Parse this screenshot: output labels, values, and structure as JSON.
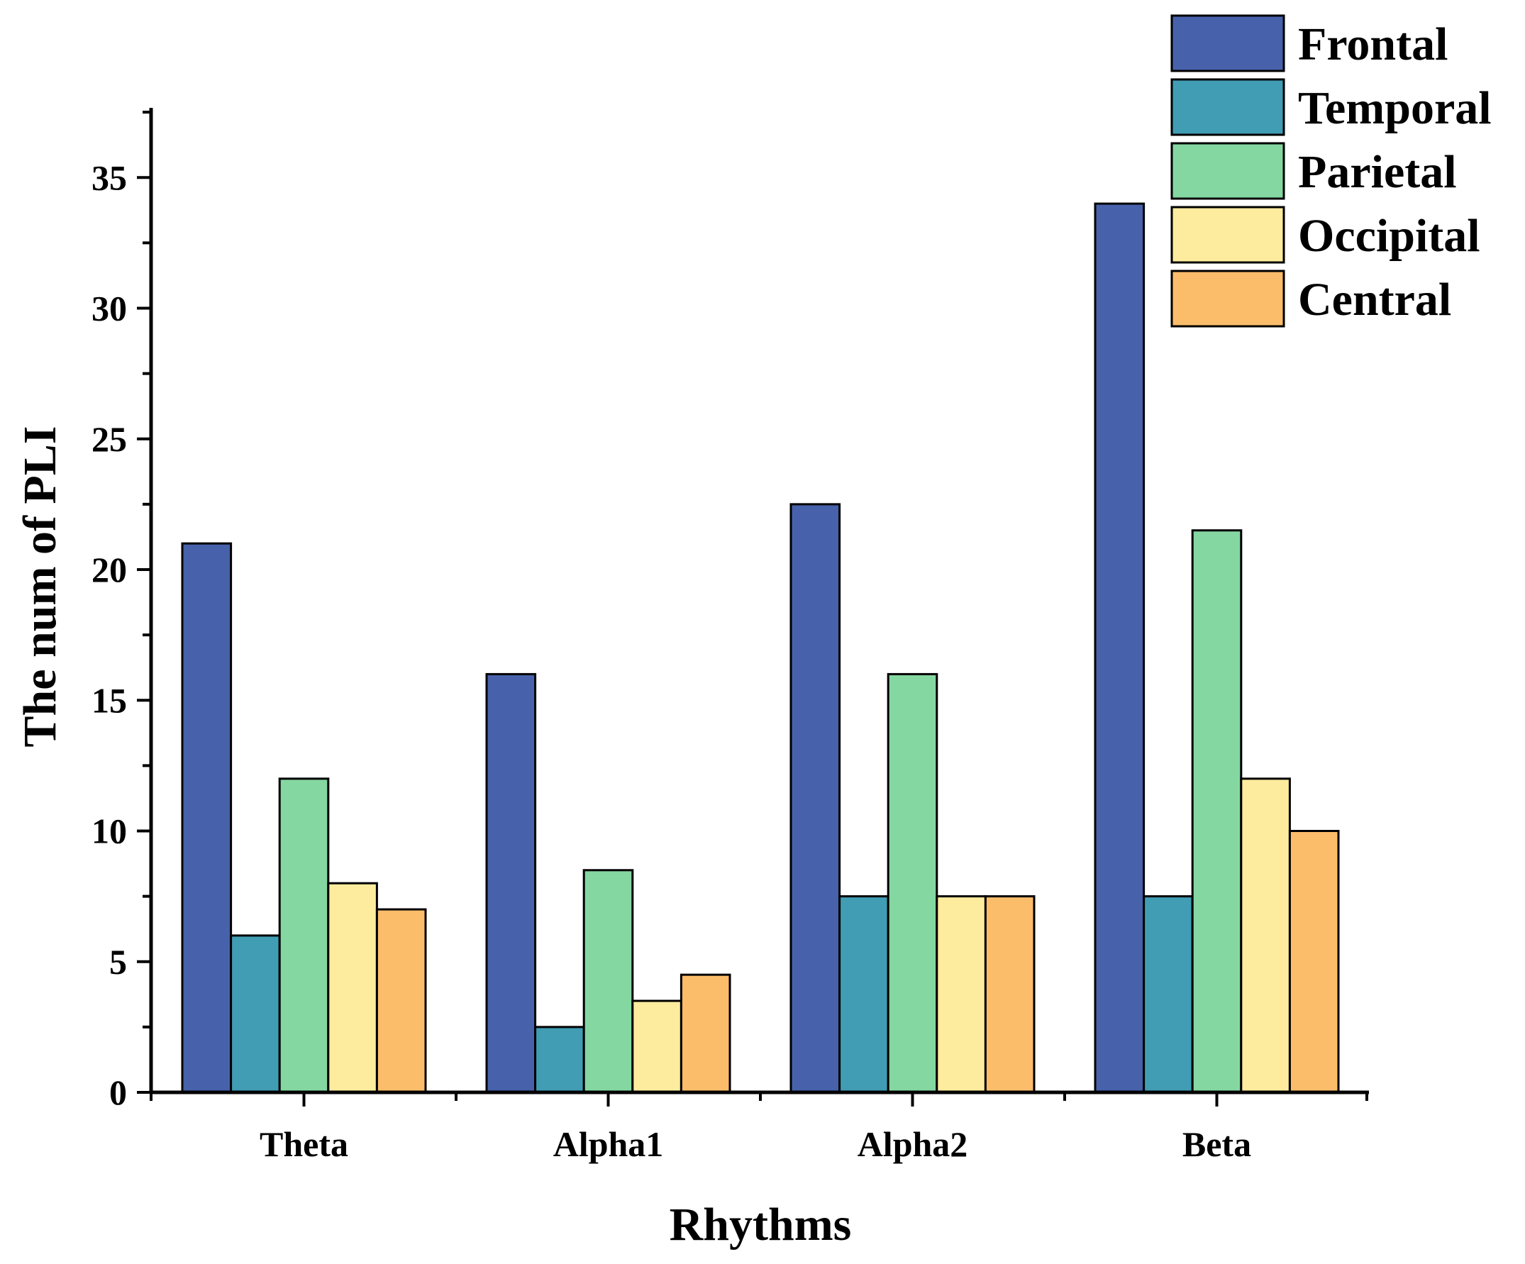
{
  "chart_data": {
    "type": "bar",
    "title": "",
    "xlabel": "Rhythms",
    "ylabel": "The num of PLI",
    "ylim": [
      0,
      37.5
    ],
    "yticks": [
      0,
      5,
      10,
      15,
      20,
      25,
      30,
      35
    ],
    "categories": [
      "Theta",
      "Alpha1",
      "Alpha2",
      "Beta"
    ],
    "legend_position": "top-right",
    "series": [
      {
        "name": "Frontal",
        "color": "#4762ab",
        "values": [
          21,
          16,
          22.5,
          34
        ]
      },
      {
        "name": "Temporal",
        "color": "#409db4",
        "values": [
          6,
          2.5,
          7.5,
          7.5
        ]
      },
      {
        "name": "Parietal",
        "color": "#85d7a1",
        "values": [
          12,
          8.5,
          16,
          21.5
        ]
      },
      {
        "name": "Occipital",
        "color": "#feec9e",
        "values": [
          8,
          3.5,
          7.5,
          12
        ]
      },
      {
        "name": "Central",
        "color": "#fcbd6b",
        "values": [
          7,
          4.5,
          7.5,
          10
        ]
      }
    ]
  }
}
